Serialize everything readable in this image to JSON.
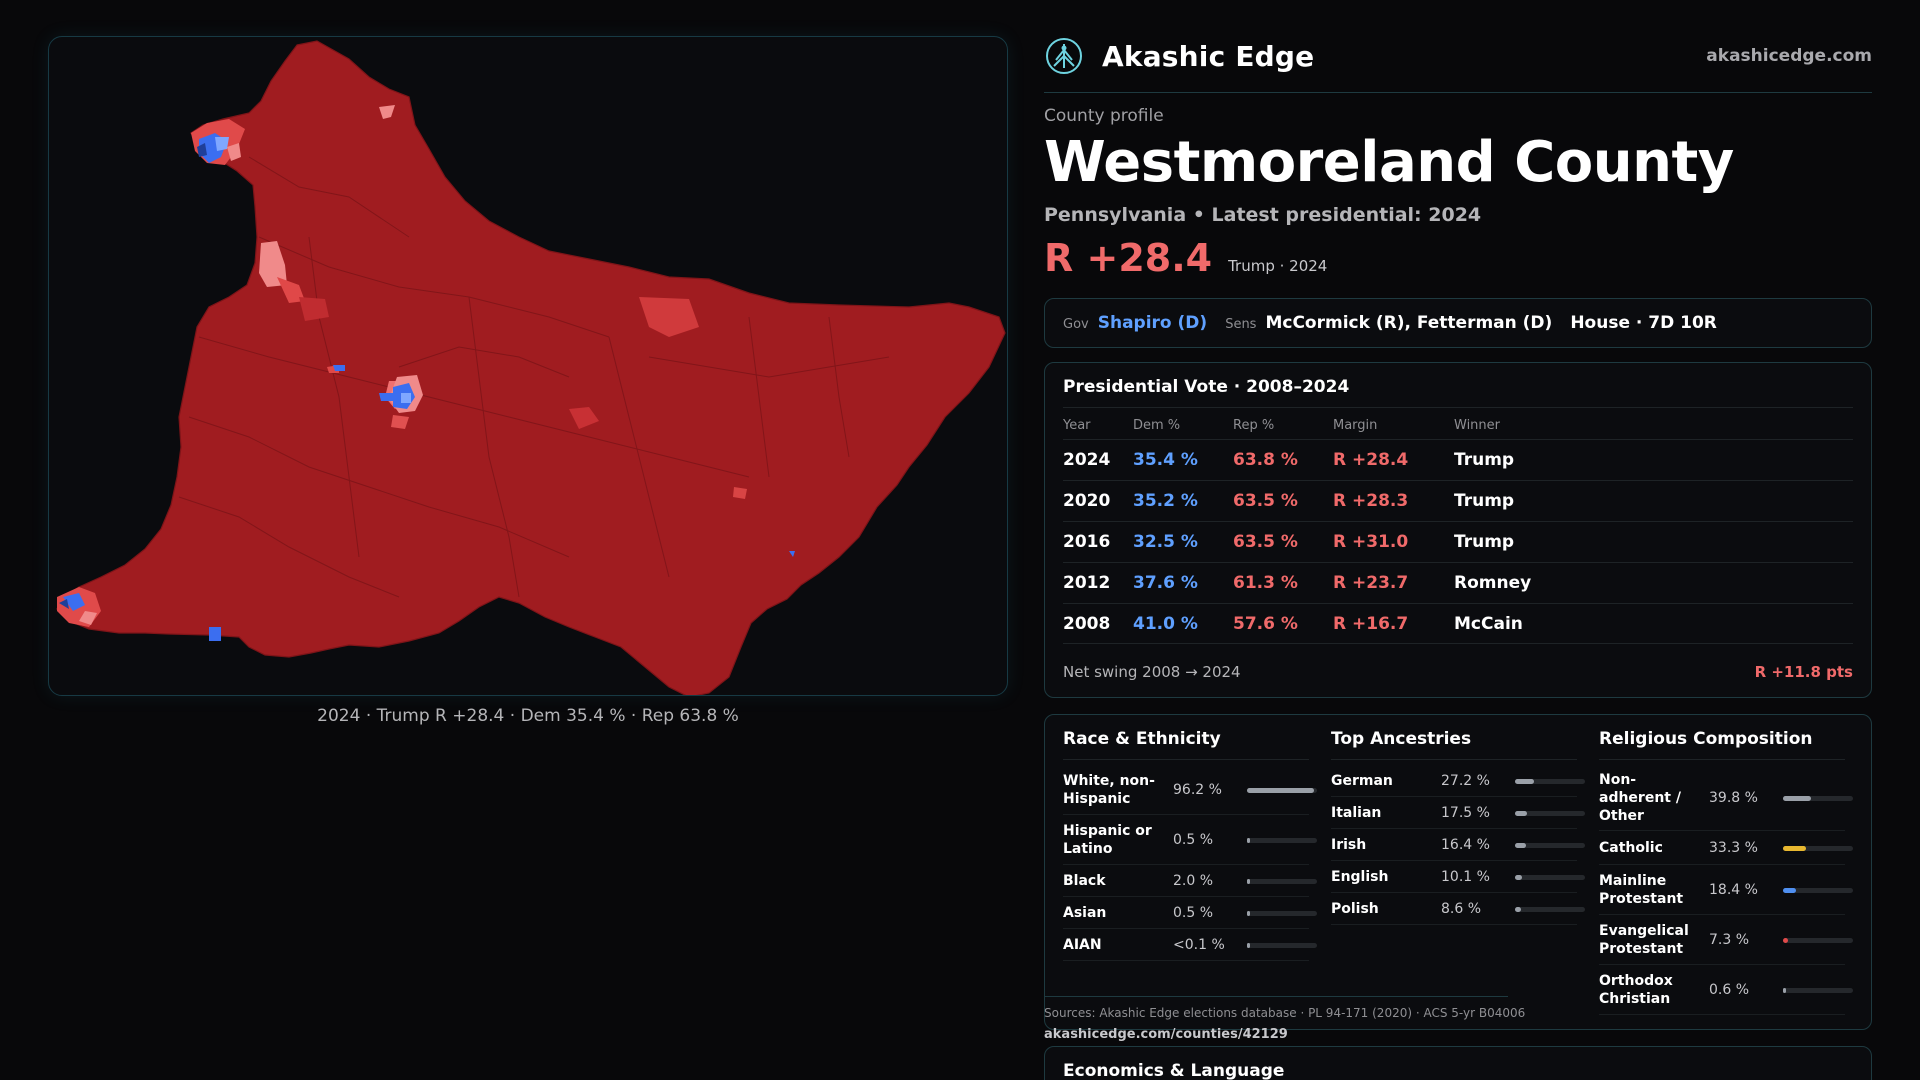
{
  "map": {
    "caption": "2024 · Trump R +28.4 · Dem 35.4 % · Rep 63.8 %",
    "colors": {
      "base": "#a01c20",
      "border": "#7e1418",
      "light_red": "#f08a8a",
      "blue": "#3b6ef0",
      "light_blue": "#7fa7ff"
    }
  },
  "brand": {
    "name": "Akashic Edge",
    "url": "akashicedge.com",
    "logo_icon": "tree-emblem-icon"
  },
  "profile": {
    "eyebrow": "County profile",
    "county": "Westmoreland County",
    "subline": "Pennsylvania • Latest presidential: 2024",
    "margin": "R +28.4",
    "margin_note": "Trump · 2024"
  },
  "officials": {
    "gov_label": "Gov",
    "gov": "Shapiro (D)",
    "sens_label": "Sens",
    "sens": "McCormick (R), Fetterman (D)",
    "house": "House · 7D 10R"
  },
  "presidential": {
    "title": "Presidential Vote · 2008–2024",
    "headers": [
      "Year",
      "Dem %",
      "Rep %",
      "Margin",
      "Winner"
    ],
    "rows": [
      {
        "year": "2024",
        "dem": "35.4 %",
        "rep": "63.8 %",
        "margin": "R +28.4",
        "winner": "Trump"
      },
      {
        "year": "2020",
        "dem": "35.2 %",
        "rep": "63.5 %",
        "margin": "R +28.3",
        "winner": "Trump"
      },
      {
        "year": "2016",
        "dem": "32.5 %",
        "rep": "63.5 %",
        "margin": "R +31.0",
        "winner": "Trump"
      },
      {
        "year": "2012",
        "dem": "37.6 %",
        "rep": "61.3 %",
        "margin": "R +23.7",
        "winner": "Romney"
      },
      {
        "year": "2008",
        "dem": "41.0 %",
        "rep": "57.6 %",
        "margin": "R +16.7",
        "winner": "McCain"
      }
    ],
    "swing_label": "Net swing 2008 → 2024",
    "swing_value": "R +11.8 pts"
  },
  "race": {
    "title": "Race & Ethnicity",
    "items": [
      {
        "name": "White, non-Hispanic",
        "pct": "96.2 %",
        "value": 96.2,
        "color": "#9aa0a8"
      },
      {
        "name": "Hispanic or Latino",
        "pct": "0.5 %",
        "value": 0.5,
        "color": "#9aa0a8"
      },
      {
        "name": "Black",
        "pct": "2.0 %",
        "value": 2.0,
        "color": "#9aa0a8"
      },
      {
        "name": "Asian",
        "pct": "0.5 %",
        "value": 0.5,
        "color": "#9aa0a8"
      },
      {
        "name": "AIAN",
        "pct": "<0.1 %",
        "value": 0.05,
        "color": "#9aa0a8"
      }
    ]
  },
  "ancestry": {
    "title": "Top Ancestries",
    "items": [
      {
        "name": "German",
        "pct": "27.2 %",
        "value": 27.2,
        "color": "#9aa0a8"
      },
      {
        "name": "Italian",
        "pct": "17.5 %",
        "value": 17.5,
        "color": "#9aa0a8"
      },
      {
        "name": "Irish",
        "pct": "16.4 %",
        "value": 16.4,
        "color": "#9aa0a8"
      },
      {
        "name": "English",
        "pct": "10.1 %",
        "value": 10.1,
        "color": "#9aa0a8"
      },
      {
        "name": "Polish",
        "pct": "8.6 %",
        "value": 8.6,
        "color": "#9aa0a8"
      }
    ]
  },
  "religion": {
    "title": "Religious Composition",
    "items": [
      {
        "name": "Non-adherent / Other",
        "pct": "39.8 %",
        "value": 39.8,
        "color": "#9aa0a8"
      },
      {
        "name": "Catholic",
        "pct": "33.3 %",
        "value": 33.3,
        "color": "#e8b830"
      },
      {
        "name": "Mainline Protestant",
        "pct": "18.4 %",
        "value": 18.4,
        "color": "#4f8ff0"
      },
      {
        "name": "Evangelical Protestant",
        "pct": "7.3 %",
        "value": 7.3,
        "color": "#e04a4a"
      },
      {
        "name": "Orthodox Christian",
        "pct": "0.6 %",
        "value": 0.6,
        "color": "#9aa0a8"
      }
    ]
  },
  "sources": {
    "text": "Sources: Akashic Edge elections database · PL 94-171 (2020) · ACS 5-yr B04006",
    "url": "akashicedge.com/counties/42129"
  },
  "economics": {
    "title": "Economics & Language"
  }
}
